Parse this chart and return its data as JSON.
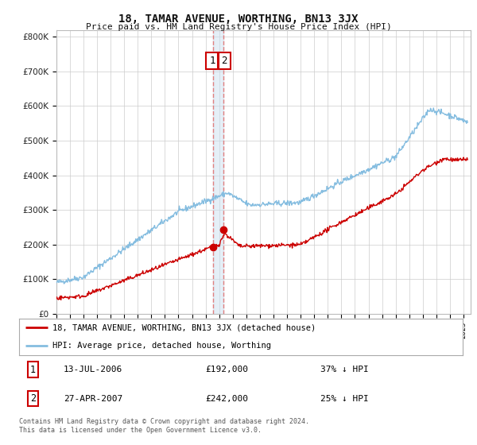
{
  "title": "18, TAMAR AVENUE, WORTHING, BN13 3JX",
  "subtitle": "Price paid vs. HM Land Registry's House Price Index (HPI)",
  "hpi_color": "#85bde0",
  "price_color": "#cc0000",
  "legend_label_price": "18, TAMAR AVENUE, WORTHING, BN13 3JX (detached house)",
  "legend_label_hpi": "HPI: Average price, detached house, Worthing",
  "transaction1_date": "13-JUL-2006",
  "transaction1_price": "£192,000",
  "transaction1_note": "37% ↓ HPI",
  "transaction2_date": "27-APR-2007",
  "transaction2_price": "£242,000",
  "transaction2_note": "25% ↓ HPI",
  "vline1_x": 2006.54,
  "vline2_x": 2007.32,
  "marker1_x": 2006.54,
  "marker1_y": 192000,
  "marker2_x": 2007.32,
  "marker2_y": 242000,
  "footer": "Contains HM Land Registry data © Crown copyright and database right 2024.\nThis data is licensed under the Open Government Licence v3.0.",
  "ylim": [
    0,
    820000
  ],
  "xlim_start": 1995.0,
  "xlim_end": 2025.5,
  "yticks": [
    0,
    100000,
    200000,
    300000,
    400000,
    500000,
    600000,
    700000,
    800000
  ],
  "background_color": "#ffffff",
  "grid_color": "#cccccc"
}
